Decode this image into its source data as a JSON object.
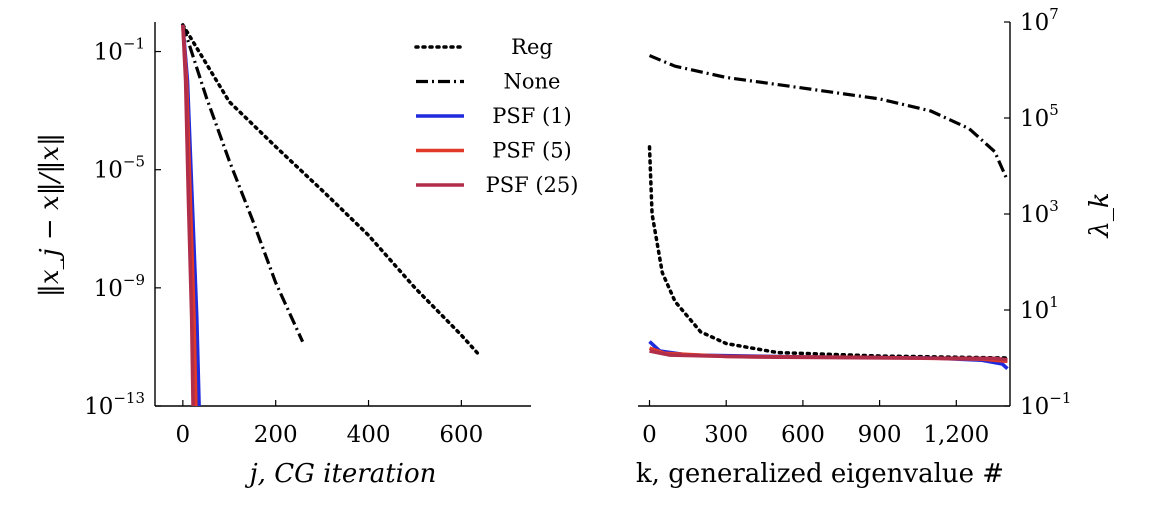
{
  "chart_data": [
    {
      "type": "line",
      "ylabel": "‖x_j − x‖/‖x‖",
      "xlabel": "j, CG iteration",
      "y_scale": "log",
      "xlim": [
        -60,
        750
      ],
      "ylim": [
        1e-13,
        1
      ],
      "xticks": [
        "0",
        "200",
        "400",
        "600"
      ],
      "yticks": [
        {
          "value": 0.1,
          "base": "10",
          "exp": "−1"
        },
        {
          "value": 1e-05,
          "base": "10",
          "exp": "−5"
        },
        {
          "value": 1e-09,
          "base": "10",
          "exp": "−9"
        },
        {
          "value": 1e-13,
          "base": "10",
          "exp": "−13"
        }
      ],
      "legend": "top-right",
      "series": [
        {
          "name": "Reg",
          "color": "#000000",
          "style": "dotted",
          "points": [
            [
              0,
              0.8
            ],
            [
              100,
              0.002
            ],
            [
              200,
              6e-05
            ],
            [
              300,
              2e-06
            ],
            [
              400,
              6e-08
            ],
            [
              500,
              1e-09
            ],
            [
              600,
              2.5e-11
            ],
            [
              640,
              5e-12
            ]
          ]
        },
        {
          "name": "None",
          "color": "#000000",
          "style": "dashdot",
          "points": [
            [
              0,
              0.8
            ],
            [
              50,
              0.003
            ],
            [
              100,
              2e-05
            ],
            [
              150,
              2e-07
            ],
            [
              200,
              1.5e-09
            ],
            [
              258,
              1.5e-11
            ]
          ]
        },
        {
          "name": "PSF (1)",
          "color": "#1f2bdc",
          "style": "solid",
          "points": [
            [
              0,
              0.8
            ],
            [
              10,
              0.01
            ],
            [
              20,
              1e-06
            ],
            [
              30,
              1e-10
            ],
            [
              35,
              1e-13
            ]
          ]
        },
        {
          "name": "PSF (5)",
          "color": "#e0392a",
          "style": "solid",
          "points": [
            [
              0,
              0.8
            ],
            [
              8,
              0.01
            ],
            [
              16,
              1e-06
            ],
            [
              24,
              1e-10
            ],
            [
              28,
              1e-13
            ]
          ]
        },
        {
          "name": "PSF (25)",
          "color": "#b02e4a",
          "style": "solid",
          "points": [
            [
              0,
              0.8
            ],
            [
              6,
              0.01
            ],
            [
              12,
              1e-06
            ],
            [
              19,
              1e-10
            ],
            [
              22,
              1e-13
            ]
          ]
        }
      ]
    },
    {
      "type": "line",
      "xlabel": "k, generalized eigenvalue #",
      "ylabel": "λ_k",
      "y_scale": "log",
      "xlim": [
        -45,
        1410
      ],
      "ylim": [
        0.1,
        10000000.0
      ],
      "xticks": [
        "0",
        "300",
        "600",
        "900",
        "1,200"
      ],
      "yticks": [
        {
          "value": 10000000.0,
          "base": "10",
          "exp": "7"
        },
        {
          "value": 100000.0,
          "base": "10",
          "exp": "5"
        },
        {
          "value": 1000.0,
          "base": "10",
          "exp": "3"
        },
        {
          "value": 10,
          "base": "10",
          "exp": "1"
        },
        {
          "value": 0.1,
          "base": "10",
          "exp": "−1"
        }
      ],
      "series": [
        {
          "name": "None",
          "color": "#000000",
          "style": "dashdot",
          "points": [
            [
              0,
              2000000.0
            ],
            [
              100,
              1200000.0
            ],
            [
              300,
              700000.0
            ],
            [
              600,
              420000.0
            ],
            [
              900,
              250000.0
            ],
            [
              1100,
              140000.0
            ],
            [
              1250,
              60000.0
            ],
            [
              1350,
              20000.0
            ],
            [
              1400,
              5000.0
            ]
          ]
        },
        {
          "name": "Reg",
          "color": "#000000",
          "style": "dotted",
          "points": [
            [
              0,
              25000.0
            ],
            [
              10,
              1000.0
            ],
            [
              50,
              60
            ],
            [
              100,
              15
            ],
            [
              200,
              3.5
            ],
            [
              300,
              2
            ],
            [
              500,
              1.3
            ],
            [
              900,
              1.1
            ],
            [
              1400,
              1.0
            ]
          ]
        },
        {
          "name": "PSF (1)",
          "color": "#1f2bdc",
          "style": "solid",
          "points": [
            [
              0,
              2.2
            ],
            [
              40,
              1.4
            ],
            [
              150,
              1.15
            ],
            [
              600,
              1.05
            ],
            [
              1100,
              1.0
            ],
            [
              1300,
              0.9
            ],
            [
              1380,
              0.75
            ],
            [
              1400,
              0.6
            ]
          ]
        },
        {
          "name": "PSF (5)",
          "color": "#e0392a",
          "style": "solid",
          "points": [
            [
              0,
              1.6
            ],
            [
              60,
              1.25
            ],
            [
              300,
              1.08
            ],
            [
              900,
              1.02
            ],
            [
              1300,
              0.95
            ],
            [
              1400,
              0.85
            ]
          ]
        },
        {
          "name": "PSF (25)",
          "color": "#b02e4a",
          "style": "solid",
          "points": [
            [
              0,
              1.4
            ],
            [
              80,
              1.15
            ],
            [
              400,
              1.05
            ],
            [
              1000,
              1.0
            ],
            [
              1350,
              0.98
            ],
            [
              1400,
              0.92
            ]
          ]
        }
      ]
    }
  ]
}
